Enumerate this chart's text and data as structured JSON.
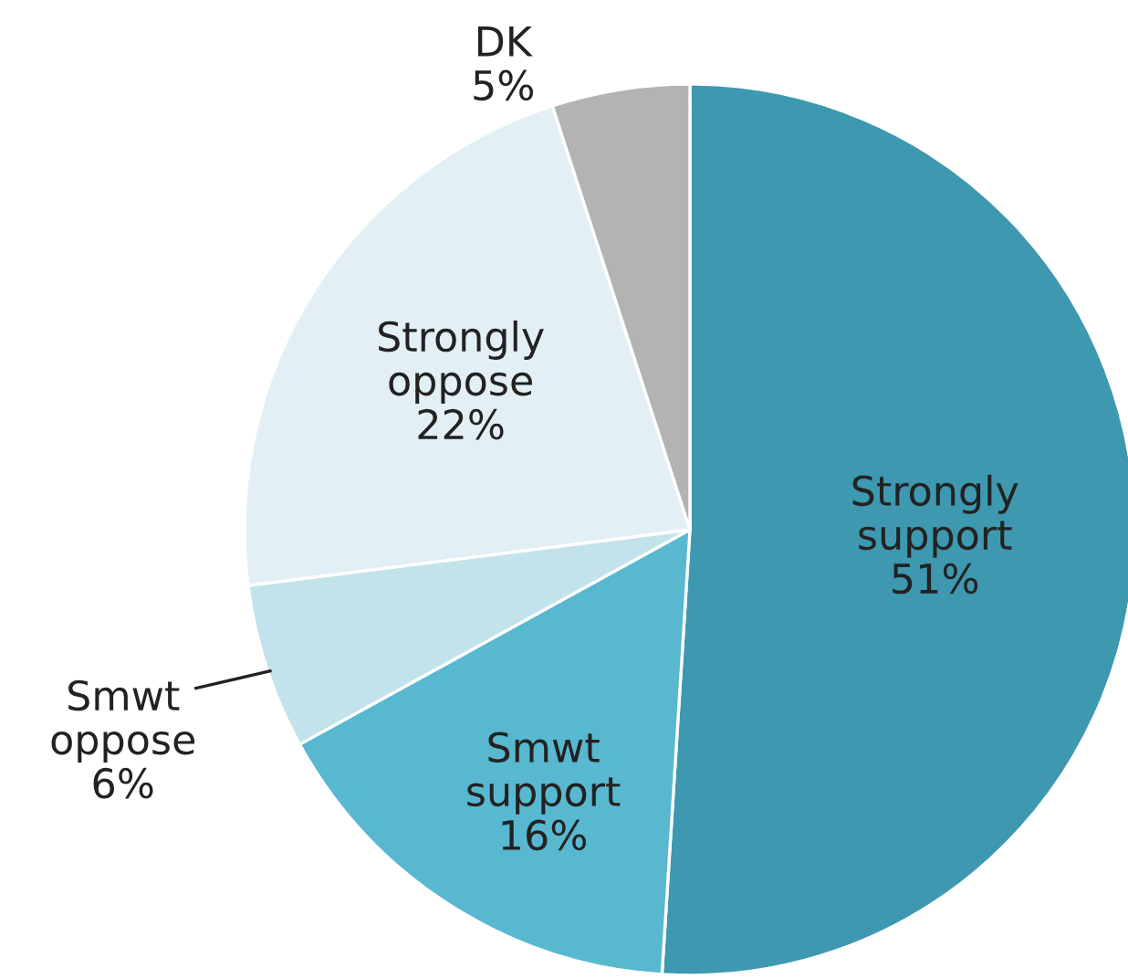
{
  "chart_data": {
    "type": "pie",
    "categories": [
      "Strongly support",
      "Smwt support",
      "Smwt oppose",
      "Strongly oppose",
      "DK"
    ],
    "values": [
      51,
      16,
      6,
      22,
      5
    ],
    "value_labels": [
      "51%",
      "16%",
      "6%",
      "22%",
      "5%"
    ],
    "colors": [
      "#3d98b0",
      "#58b8d0",
      "#c3e3ec",
      "#e2f0f6",
      "#b3b3b3"
    ]
  }
}
